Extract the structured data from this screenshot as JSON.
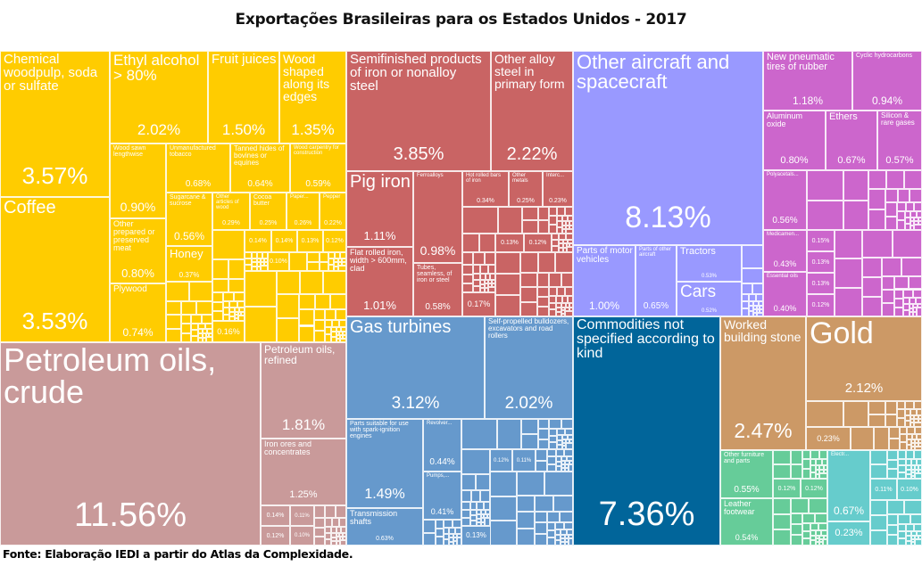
{
  "chart_data": {
    "type": "treemap",
    "title": "Exportações Brasileiras para os Estados Unidos - 2017",
    "source": "Fonte: Elaboração IEDI a partir do Atlas da Complexidade.",
    "unit": "%",
    "group_colors": [
      "#FFCC00",
      "#C96464",
      "#9999FF",
      "#CC66CC",
      "#C99A9A",
      "#6699CC",
      "#01659A",
      "#CC9966",
      "#66CC99",
      "#66CCCC"
    ],
    "items": [
      {
        "name": "Chemical woodpulp, soda or sulfate",
        "value": 3.57,
        "group": 0
      },
      {
        "name": "Coffee",
        "value": 3.53,
        "group": 0
      },
      {
        "name": "Ethyl alcohol > 80%",
        "value": 2.02,
        "group": 0
      },
      {
        "name": "Fruit juices",
        "value": 1.5,
        "group": 0
      },
      {
        "name": "Wood shaped along its edges",
        "value": 1.35,
        "group": 0
      },
      {
        "name": "Wood sawn lengthwise",
        "value": 0.9,
        "group": 0
      },
      {
        "name": "Other prepared or preserved meat",
        "value": 0.8,
        "group": 0
      },
      {
        "name": "Plywood",
        "value": 0.74,
        "group": 0
      },
      {
        "name": "Unmanufactured tobacco",
        "value": 0.68,
        "group": 0
      },
      {
        "name": "Tanned hides of bovines or equines",
        "value": 0.64,
        "group": 0
      },
      {
        "name": "Wood carpentry for construction",
        "value": 0.59,
        "group": 0
      },
      {
        "name": "Sugarcane & sucrose",
        "value": 0.56,
        "group": 0
      },
      {
        "name": "Honey",
        "value": 0.37,
        "group": 0
      },
      {
        "name": "Other articles of wood",
        "value": 0.29,
        "group": 0
      },
      {
        "name": "Cocoa butter",
        "value": 0.25,
        "group": 0
      },
      {
        "name": "Paper...",
        "value": 0.26,
        "group": 0
      },
      {
        "name": "Pepper",
        "value": 0.22,
        "group": 0
      },
      {
        "name": "",
        "value": 0.14,
        "group": 0
      },
      {
        "name": "",
        "value": 0.14,
        "group": 0
      },
      {
        "name": "",
        "value": 0.13,
        "group": 0
      },
      {
        "name": "",
        "value": 0.12,
        "group": 0
      },
      {
        "name": "",
        "value": 0.1,
        "group": 0
      },
      {
        "name": "",
        "value": 0.16,
        "group": 0
      },
      {
        "name": "Semifinished products of iron or nonalloy steel",
        "value": 3.85,
        "group": 1
      },
      {
        "name": "Other alloy steel in primary form",
        "value": 2.22,
        "group": 1
      },
      {
        "name": "Pig iron",
        "value": 1.11,
        "group": 1
      },
      {
        "name": "Flat rolled iron, width > 600mm, clad",
        "value": 1.01,
        "group": 1
      },
      {
        "name": "Ferroalloys",
        "value": 0.98,
        "group": 1
      },
      {
        "name": "Tubes, seamless, of iron or steel",
        "value": 0.58,
        "group": 1
      },
      {
        "name": "Hot rolled bars of iron",
        "value": 0.34,
        "group": 1
      },
      {
        "name": "Other metals",
        "value": 0.25,
        "group": 1
      },
      {
        "name": "Interc...",
        "value": 0.23,
        "group": 1
      },
      {
        "name": "",
        "value": 0.13,
        "group": 1
      },
      {
        "name": "",
        "value": 0.12,
        "group": 1
      },
      {
        "name": "",
        "value": 0.17,
        "group": 1
      },
      {
        "name": "Other aircraft and spacecraft",
        "value": 8.13,
        "group": 2
      },
      {
        "name": "Parts of motor vehicles",
        "value": 1.0,
        "group": 2
      },
      {
        "name": "Parts of other aircraft",
        "value": 0.65,
        "group": 2
      },
      {
        "name": "Tractors",
        "value": 0.53,
        "group": 2
      },
      {
        "name": "Cars",
        "value": 0.52,
        "group": 2
      },
      {
        "name": "New pneumatic tires of rubber",
        "value": 1.18,
        "group": 3
      },
      {
        "name": "Cyclic hydrocarbons",
        "value": 0.94,
        "group": 3
      },
      {
        "name": "Aluminum oxide",
        "value": 0.8,
        "group": 3
      },
      {
        "name": "Ethers",
        "value": 0.67,
        "group": 3
      },
      {
        "name": "Silicon & rare gases",
        "value": 0.57,
        "group": 3
      },
      {
        "name": "Polyacetals...",
        "value": 0.56,
        "group": 3
      },
      {
        "name": "Medicamen...",
        "value": 0.43,
        "group": 3
      },
      {
        "name": "Essential oils",
        "value": 0.4,
        "group": 3
      },
      {
        "name": "",
        "value": 0.15,
        "group": 3
      },
      {
        "name": "",
        "value": 0.13,
        "group": 3
      },
      {
        "name": "",
        "value": 0.13,
        "group": 3
      },
      {
        "name": "",
        "value": 0.12,
        "group": 3
      },
      {
        "name": "Petroleum oils, crude",
        "value": 11.56,
        "group": 4
      },
      {
        "name": "Petroleum oils, refined",
        "value": 1.81,
        "group": 4
      },
      {
        "name": "Iron ores and concentrates",
        "value": 1.25,
        "group": 4
      },
      {
        "name": "",
        "value": 0.14,
        "group": 4
      },
      {
        "name": "",
        "value": 0.11,
        "group": 4
      },
      {
        "name": "",
        "value": 0.12,
        "group": 4
      },
      {
        "name": "",
        "value": 0.1,
        "group": 4
      },
      {
        "name": "Gas turbines",
        "value": 3.12,
        "group": 5
      },
      {
        "name": "Self-propelled bulldozers, excavators and road rollers",
        "value": 2.02,
        "group": 5
      },
      {
        "name": "Parts suitable for use with spark-ignition engines",
        "value": 1.49,
        "group": 5
      },
      {
        "name": "Transmission shafts",
        "value": 0.63,
        "group": 5
      },
      {
        "name": "Revolver...",
        "value": 0.44,
        "group": 5
      },
      {
        "name": "Pumps,...",
        "value": 0.41,
        "group": 5
      },
      {
        "name": "",
        "value": 0.13,
        "group": 5
      },
      {
        "name": "",
        "value": 0.12,
        "group": 5
      },
      {
        "name": "",
        "value": 0.11,
        "group": 5
      },
      {
        "name": "Commodities not specified according to kind",
        "value": 7.36,
        "group": 6
      },
      {
        "name": "Worked building stone",
        "value": 2.47,
        "group": 7
      },
      {
        "name": "Gold",
        "value": 2.12,
        "group": 7
      },
      {
        "name": "",
        "value": 0.23,
        "group": 7
      },
      {
        "name": "Other furniture and parts",
        "value": 0.55,
        "group": 8
      },
      {
        "name": "Leather footwear",
        "value": 0.54,
        "group": 8
      },
      {
        "name": "",
        "value": 0.12,
        "group": 8
      },
      {
        "name": "",
        "value": 0.12,
        "group": 8
      },
      {
        "name": "Electr...",
        "value": 0.67,
        "group": 9
      },
      {
        "name": "",
        "value": 0.23,
        "group": 9
      },
      {
        "name": "",
        "value": 0.11,
        "group": 9
      },
      {
        "name": "",
        "value": 0.1,
        "group": 9
      }
    ]
  }
}
